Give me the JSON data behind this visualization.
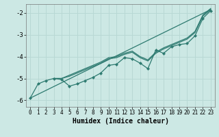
{
  "xlabel": "Humidex (Indice chaleur)",
  "xlim": [
    -0.5,
    23.5
  ],
  "ylim": [
    -6.3,
    -1.6
  ],
  "yticks": [
    -6,
    -5,
    -4,
    -3,
    -2
  ],
  "xticks": [
    0,
    1,
    2,
    3,
    4,
    5,
    6,
    7,
    8,
    9,
    10,
    11,
    12,
    13,
    14,
    15,
    16,
    17,
    18,
    19,
    20,
    21,
    22,
    23
  ],
  "bg_color": "#cce8e4",
  "line_color": "#2d7a70",
  "grid_color": "#b8d8d4",
  "lines": [
    {
      "x": [
        0,
        1,
        2,
        3,
        4,
        5,
        6,
        7,
        8,
        9,
        10,
        11,
        12,
        13,
        14,
        15,
        16,
        17,
        18,
        19,
        20,
        21,
        22,
        23
      ],
      "y": [
        -5.9,
        -5.25,
        -5.1,
        -5.0,
        -5.05,
        -5.35,
        -5.25,
        -5.1,
        -4.95,
        -4.75,
        -4.4,
        -4.35,
        -4.05,
        -4.1,
        -4.3,
        -4.55,
        -3.7,
        -3.85,
        -3.55,
        -3.45,
        -3.4,
        -3.05,
        -2.25,
        -1.9
      ],
      "marker": true
    },
    {
      "x": [
        0,
        23
      ],
      "y": [
        -5.9,
        -1.85
      ],
      "marker": false,
      "straight": true
    },
    {
      "x": [
        3,
        4,
        5,
        6,
        7,
        8,
        9,
        10,
        11,
        12,
        13,
        14,
        15,
        16,
        17,
        18,
        19,
        20,
        21,
        22,
        23
      ],
      "y": [
        -5.0,
        -5.0,
        -4.9,
        -4.75,
        -4.6,
        -4.45,
        -4.3,
        -4.1,
        -4.05,
        -3.9,
        -3.8,
        -4.05,
        -4.2,
        -3.85,
        -3.65,
        -3.5,
        -3.35,
        -3.2,
        -2.9,
        -2.15,
        -1.85
      ],
      "marker": false,
      "straight": false
    },
    {
      "x": [
        3,
        4,
        5,
        6,
        7,
        8,
        9,
        10,
        11,
        12,
        13,
        14,
        15,
        16,
        17,
        18,
        19,
        20,
        21,
        22,
        23
      ],
      "y": [
        -5.0,
        -5.0,
        -4.85,
        -4.7,
        -4.55,
        -4.4,
        -4.25,
        -4.05,
        -4.0,
        -3.85,
        -3.75,
        -4.0,
        -4.15,
        -3.8,
        -3.6,
        -3.45,
        -3.3,
        -3.15,
        -2.85,
        -2.1,
        -1.8
      ],
      "marker": false,
      "straight": false
    }
  ]
}
